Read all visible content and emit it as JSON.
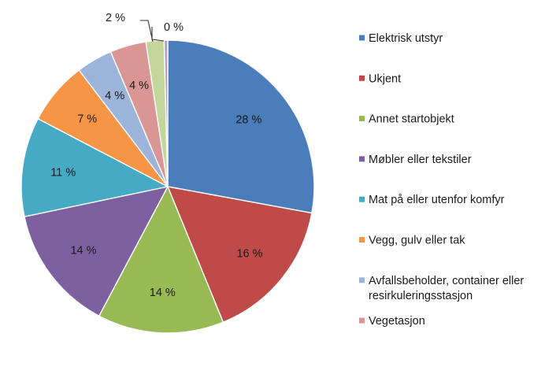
{
  "chart_data": {
    "type": "pie",
    "title": "",
    "unit": "%",
    "start_angle_deg": 0,
    "direction": "clockwise",
    "legend_position": "right",
    "slices": [
      {
        "name": "Elektrisk utstyr",
        "value": 28,
        "label": "28 %",
        "color": "#4A7DBA"
      },
      {
        "name": "Ukjent",
        "value": 16,
        "label": "16 %",
        "color": "#BE4B48"
      },
      {
        "name": "Annet startobjekt",
        "value": 14,
        "label": "14 %",
        "color": "#98B954"
      },
      {
        "name": "Møbler eller tekstiler",
        "value": 14,
        "label": "14 %",
        "color": "#7D60A0"
      },
      {
        "name": "Mat på eller utenfor komfyr",
        "value": 11,
        "label": "11 %",
        "color": "#46AAC5"
      },
      {
        "name": "Vegg, gulv eller tak",
        "value": 7,
        "label": "7 %",
        "color": "#F69546"
      },
      {
        "name": "Avfallsbeholder, container eller resirkuleringsstasjon",
        "legend_lines": [
          "Avfallsbeholder, container eller",
          "resirkuleringsstasjon"
        ],
        "value": 4,
        "label": "4 %",
        "color": "#9CB4DA"
      },
      {
        "name": "Vegetasjon",
        "value": 4,
        "label": "4 %",
        "color": "#DA9694"
      },
      {
        "name": "",
        "value": 2,
        "label": "2 %",
        "color": "#C3D69B"
      },
      {
        "name": "",
        "value": 0.4,
        "label": "0 %",
        "color": "#B2A2C7"
      }
    ]
  }
}
